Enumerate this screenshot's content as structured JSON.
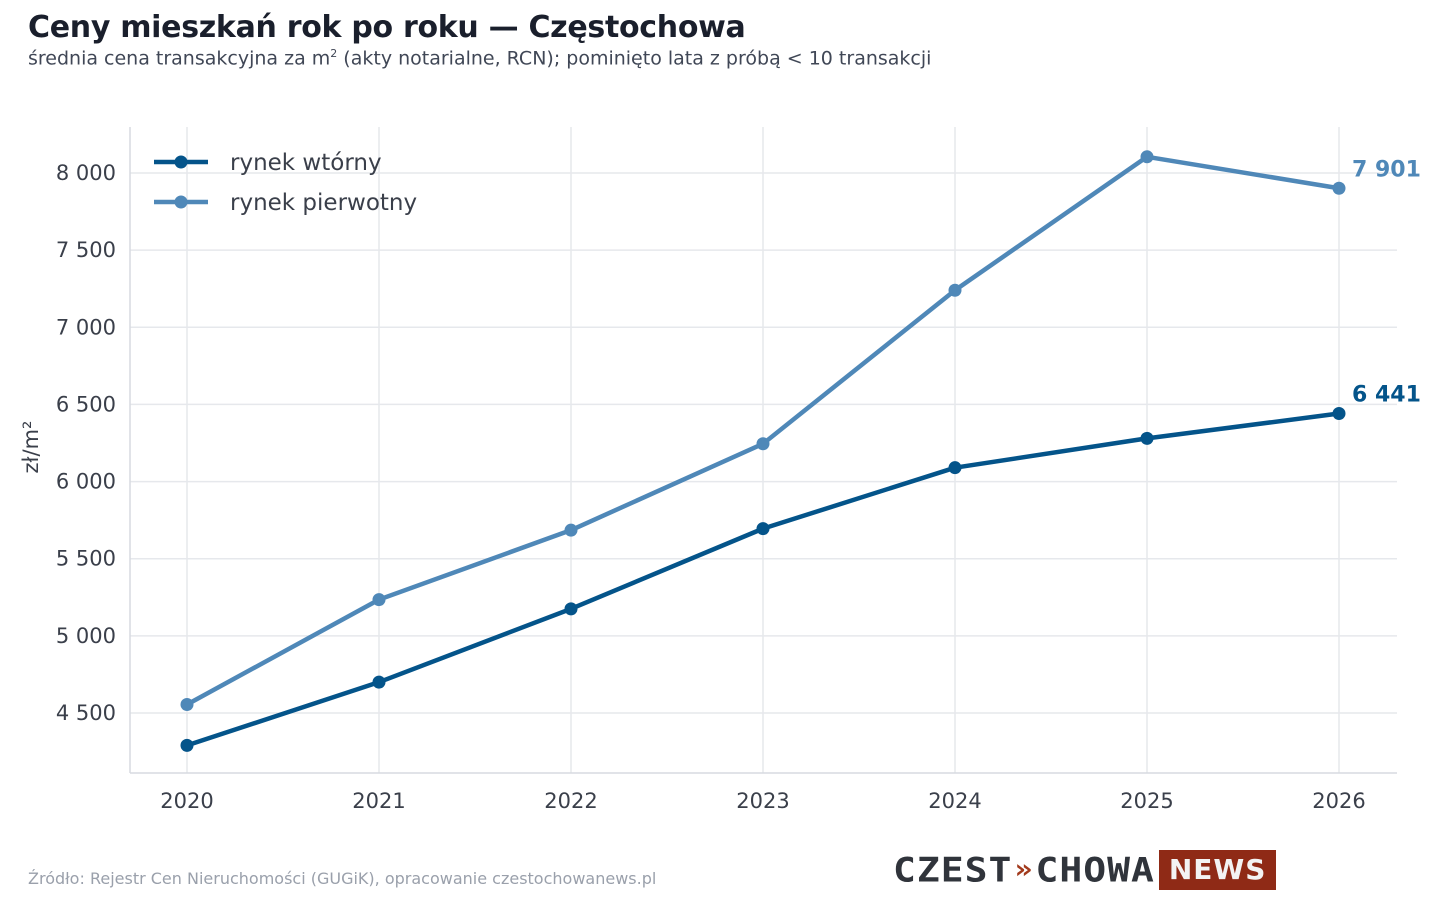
{
  "header": {
    "title": "Ceny mieszkań rok po roku — Częstochowa",
    "subtitle_pre": "średnia cena transakcyjna za m",
    "subtitle_sup": "2",
    "subtitle_post": " (akty notarialne, RCN); pominięto lata z próbą < 10 transakcji"
  },
  "footer": {
    "source": "Źródło: Rejestr Cen Nieruchomości (GUGiK), opracowanie czestochowanews.pl"
  },
  "logo": {
    "text_a": "CZEST",
    "mark": "»",
    "text_b": "CHOWA",
    "badge": "NEWS",
    "badge_color": "#8f2a16"
  },
  "chart_data": {
    "type": "line",
    "title": "Ceny mieszkań rok po roku — Częstochowa",
    "ylabel": "zł/m²",
    "xlabel": "",
    "x": [
      2020,
      2021,
      2022,
      2023,
      2024,
      2025,
      2026
    ],
    "ylim": [
      4300,
      8300
    ],
    "yticks": [
      4500,
      5000,
      5500,
      6000,
      6500,
      7000,
      7500,
      8000
    ],
    "ytick_labels": [
      "4 500",
      "5 000",
      "5 500",
      "6 000",
      "6 500",
      "7 000",
      "7 500",
      "8 000"
    ],
    "grid": true,
    "legend_position": "top-left",
    "series": [
      {
        "name": "rynek wtórny",
        "color": "#04548a",
        "values": [
          4290,
          4700,
          5175,
          5695,
          6090,
          6280,
          6441
        ],
        "end_label": "6 441"
      },
      {
        "name": "rynek pierwotny",
        "color": "#4f88b8",
        "values": [
          4555,
          5235,
          5685,
          6245,
          7240,
          8105,
          7901
        ],
        "end_label": "7 901"
      }
    ]
  }
}
